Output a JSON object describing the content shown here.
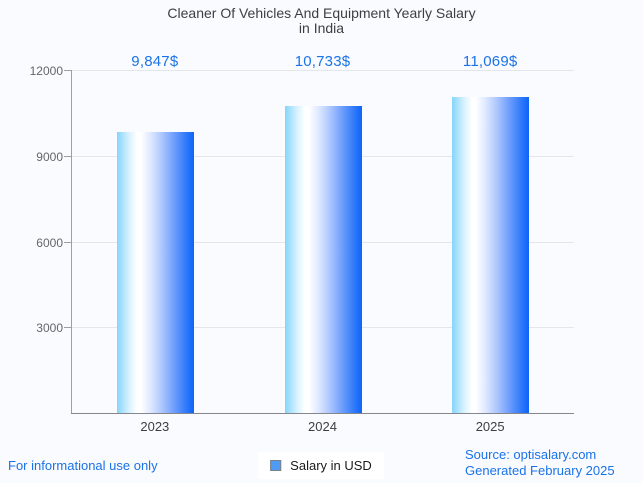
{
  "title": {
    "line1": "Cleaner Of Vehicles And Equipment Yearly Salary",
    "line2": "in India"
  },
  "chart_data": {
    "type": "bar",
    "title": "Cleaner Of Vehicles And Equipment Yearly Salary in India",
    "categories": [
      "2023",
      "2024",
      "2025"
    ],
    "values": [
      9847,
      10733,
      11069
    ],
    "value_labels": [
      "9,847$",
      "10,733$",
      "11,069$"
    ],
    "series": [
      {
        "name": "Salary in USD",
        "values": [
          9847,
          10733,
          11069
        ]
      }
    ],
    "xlabel": "",
    "ylabel": "",
    "ylim": [
      0,
      12000
    ],
    "yticks": [
      3000,
      6000,
      9000,
      12000
    ],
    "grid": true,
    "legend_position": "bottom"
  },
  "legend": {
    "label": "Salary in USD"
  },
  "footer": {
    "left": "For informational use only",
    "source": "Source: optisalary.com",
    "generated": "Generated February 2025"
  },
  "colors": {
    "accent_text": "#1a73e8",
    "bar_gradient_left": "#85d5fb",
    "bar_gradient_mid": "#ffffff",
    "bar_gradient_right": "#0d64f9",
    "legend_marker": "#4f9cf7",
    "gridline": "#e3e6ea",
    "axis": "#9aa0a6",
    "title_text": "#3d3f42",
    "tick_text": "#63666b"
  }
}
